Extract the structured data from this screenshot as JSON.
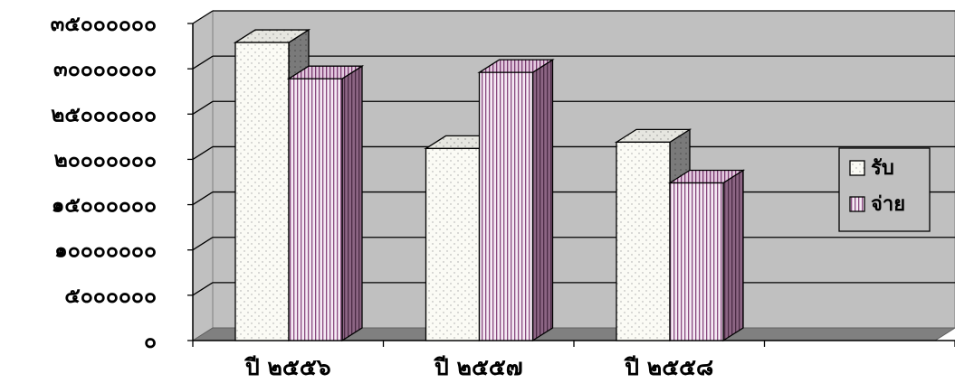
{
  "chart_data": {
    "type": "bar",
    "categories": [
      "ปี ๒๕๕๖",
      "ปี ๒๕๕๗",
      "ปี ๒๕๕๘"
    ],
    "series": [
      {
        "name": "รับ",
        "values": [
          32900000,
          21200000,
          21900000
        ]
      },
      {
        "name": "จ่าย",
        "values": [
          28900000,
          29600000,
          17400000
        ]
      }
    ],
    "ylim": [
      0,
      35000000
    ],
    "yticks": [
      0,
      5000000,
      10000000,
      15000000,
      20000000,
      25000000,
      30000000,
      35000000
    ],
    "ytick_labels": [
      "๐",
      "๕๐๐๐๐๐๐",
      "๑๐๐๐๐๐๐๐",
      "๑๕๐๐๐๐๐๐",
      "๒๐๐๐๐๐๐๐",
      "๒๕๐๐๐๐๐๐",
      "๓๐๐๐๐๐๐๐",
      "๓๕๐๐๐๐๐๐"
    ],
    "grid": true,
    "legend": "right",
    "three_d": true,
    "colors": {
      "plot_back": "#c0c0c0",
      "plot_floor": "#808080",
      "series_fill": [
        "#fbfbf5",
        "#f5eaf4"
      ],
      "series_hatch": [
        "#a6a6a6",
        "#8a4a80"
      ],
      "series_side": [
        "#7a7a7a",
        "#8c6584"
      ]
    }
  }
}
